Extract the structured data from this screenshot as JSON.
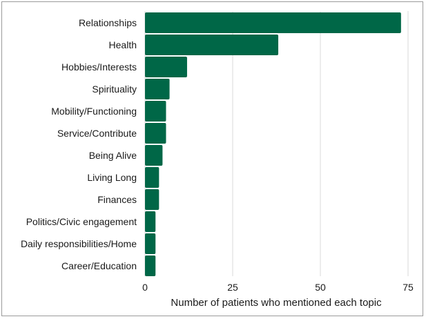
{
  "chart_data": {
    "type": "bar",
    "orientation": "horizontal",
    "categories": [
      "Relationships",
      "Health",
      "Hobbies/Interests",
      "Spirituality",
      "Mobility/Functioning",
      "Service/Contribute",
      "Being Alive",
      "Living Long",
      "Finances",
      "Politics/Civic engagement",
      "Daily responsibilities/Home",
      "Career/Education"
    ],
    "values": [
      73,
      38,
      12,
      7,
      6,
      6,
      5,
      4,
      4,
      3,
      3,
      3
    ],
    "xlabel": "Number of patients who mentioned each topic",
    "ylabel": "",
    "xlim": [
      0,
      75
    ],
    "xticks": [
      0,
      25,
      50,
      75
    ],
    "xtick_labels": [
      "0",
      "25",
      "50",
      "75"
    ],
    "grid": "vertical",
    "colors": {
      "bar": "#006747",
      "grid": "#d9d9d9",
      "frame": "#9a9a9a"
    }
  }
}
